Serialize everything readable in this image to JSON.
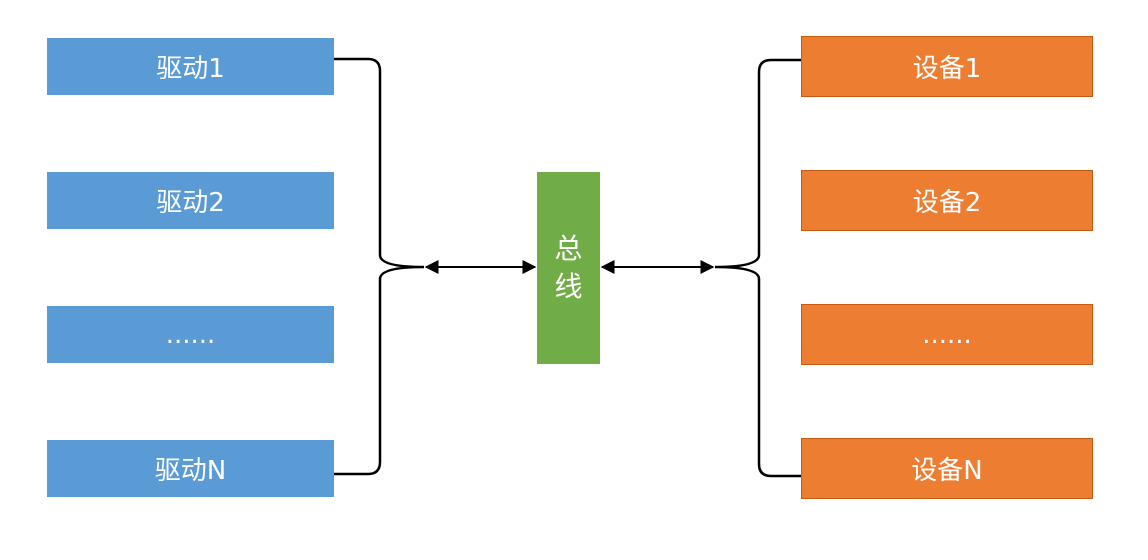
{
  "drivers": [
    {
      "label": "驱动1"
    },
    {
      "label": "驱动2"
    },
    {
      "label": "......"
    },
    {
      "label": "驱动N"
    }
  ],
  "bus": {
    "char1": "总",
    "char2": "线"
  },
  "devices": [
    {
      "label": "设备1"
    },
    {
      "label": "设备2"
    },
    {
      "label": "......"
    },
    {
      "label": "设备N"
    }
  ],
  "colors": {
    "driver": "#5b9bd5",
    "device": "#ed7d31",
    "device_border": "#c55a11",
    "bus": "#70ad47",
    "connector": "#000000"
  }
}
